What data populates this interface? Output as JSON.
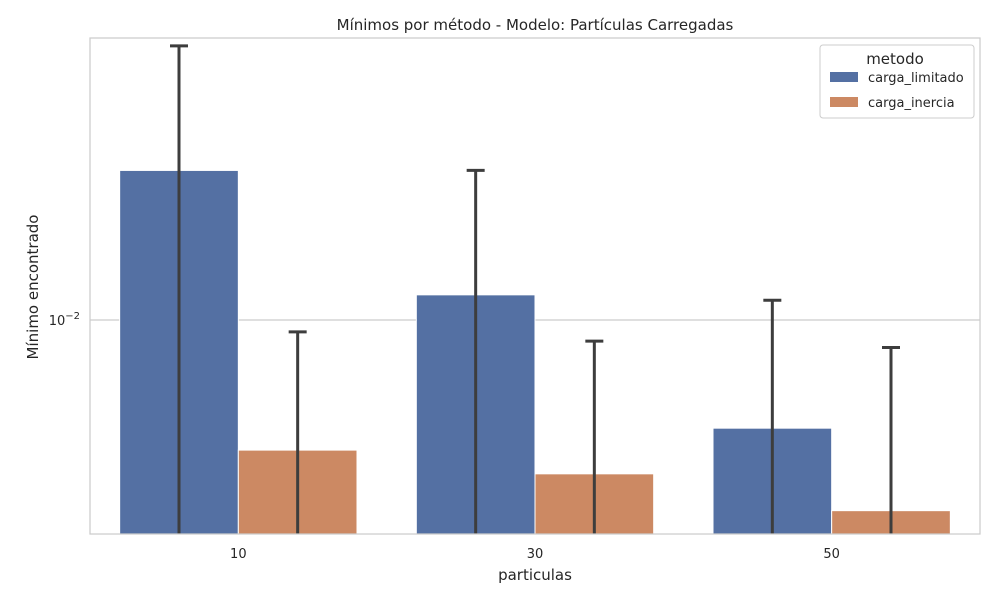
{
  "chart_data": {
    "type": "bar",
    "title": "Mínimos por método - Modelo: Partículas Carregadas",
    "xlabel": "particulas",
    "ylabel": "Mínimo encontrado",
    "categories": [
      "10",
      "30",
      "50"
    ],
    "yscale": "log",
    "ylim": [
      0.0048,
      0.0263
    ],
    "y_ticks": [
      {
        "value": 0.01,
        "base": "10",
        "exponent": "−2"
      }
    ],
    "grid": "horizontal",
    "legend": {
      "title": "metodo",
      "placement": "top-right"
    },
    "series": [
      {
        "name": "carga_limitado",
        "color": "#5470a3",
        "values": [
          0.0167,
          0.0109,
          0.0069
        ],
        "error_upper": [
          0.0256,
          0.0167,
          0.0107
        ]
      },
      {
        "name": "carga_inercia",
        "color": "#cc8963",
        "values": [
          0.0064,
          0.0059,
          0.0052
        ],
        "error_upper": [
          0.0096,
          0.0093,
          0.0091
        ]
      }
    ]
  }
}
